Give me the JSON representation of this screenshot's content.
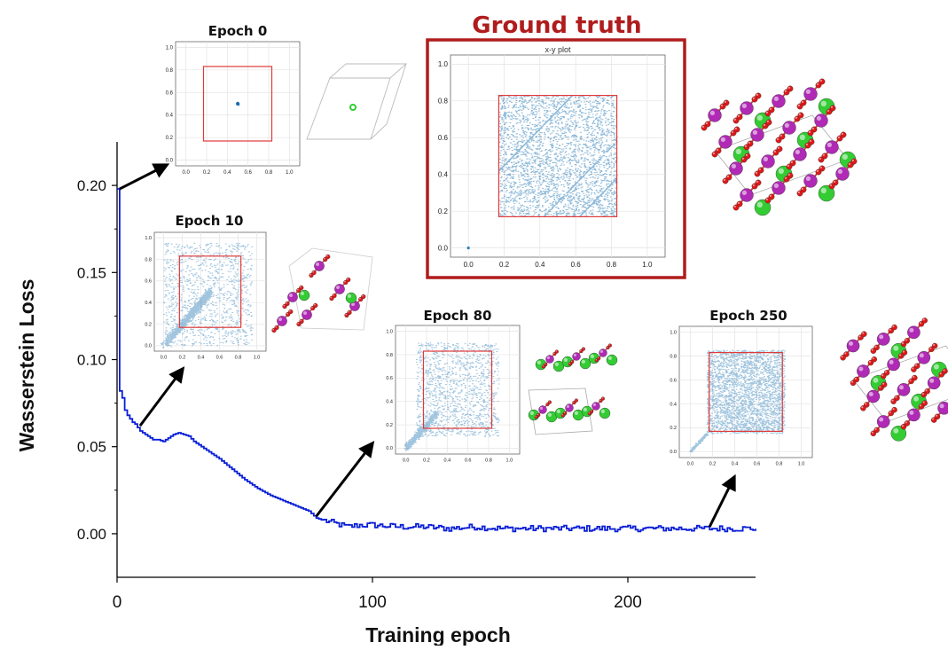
{
  "chart_data": {
    "type": "line",
    "xlabel": "Training epoch",
    "ylabel": "Wasserstein Loss",
    "xlim": [
      0,
      250
    ],
    "ylim": [
      -0.025,
      0.225
    ],
    "x_ticks": [
      0,
      100,
      200
    ],
    "x_tick_labels": [
      "0",
      "100",
      "200"
    ],
    "y_ticks": [
      0.0,
      0.05,
      0.1,
      0.15,
      0.2
    ],
    "y_tick_labels": [
      "0.00",
      "0.05",
      "0.10",
      "0.15",
      "0.20"
    ],
    "grid": false,
    "color": "#0a1fd6",
    "series": [
      {
        "x": [
          0,
          1,
          2,
          3,
          4,
          5,
          6,
          7,
          8,
          9,
          10,
          12,
          14,
          16,
          18,
          20,
          22,
          24,
          26,
          28,
          30,
          35,
          40,
          45,
          50,
          55,
          60,
          65,
          70,
          75,
          78,
          80,
          85,
          90,
          95,
          100,
          110,
          120,
          130,
          140,
          150,
          160,
          170,
          180,
          190,
          200,
          210,
          220,
          230,
          240,
          250
        ],
        "y": [
          0.198,
          0.082,
          0.078,
          0.071,
          0.068,
          0.066,
          0.064,
          0.063,
          0.061,
          0.059,
          0.058,
          0.056,
          0.054,
          0.054,
          0.053,
          0.055,
          0.057,
          0.058,
          0.057,
          0.056,
          0.053,
          0.048,
          0.043,
          0.037,
          0.031,
          0.026,
          0.022,
          0.019,
          0.016,
          0.013,
          0.009,
          0.008,
          0.006,
          0.004,
          0.005,
          0.005,
          0.004,
          0.004,
          0.003,
          0.004,
          0.003,
          0.003,
          0.003,
          0.003,
          0.003,
          0.003,
          0.003,
          0.003,
          0.003,
          0.003,
          0.003
        ]
      }
    ],
    "insets": [
      {
        "label": "Epoch 0",
        "epoch": 0,
        "tick_labels": [
          "0.0",
          "0.2",
          "0.4",
          "0.6",
          "0.8",
          "1.0"
        ]
      },
      {
        "label": "Epoch 10",
        "epoch": 10,
        "tick_labels": [
          "0.0",
          "0.2",
          "0.4",
          "0.6",
          "0.8",
          "1.0"
        ]
      },
      {
        "label": "Epoch 80",
        "epoch": 80,
        "tick_labels": [
          "0.0",
          "0.2",
          "0.4",
          "0.6",
          "0.8",
          "1.0"
        ]
      },
      {
        "label": "Epoch 250",
        "epoch": 250,
        "tick_labels": [
          "0.0",
          "0.2",
          "0.4",
          "0.6",
          "0.8",
          "1.0"
        ]
      },
      {
        "label": "Ground truth",
        "plot_title": "x-y plot",
        "tick_labels": [
          "0.0",
          "0.2",
          "0.4",
          "0.6",
          "0.8",
          "1.0"
        ],
        "highlight_color": "#b01c1c"
      }
    ],
    "structure_colors": {
      "cation": "#b02ab5",
      "anion_large": "#33cc33",
      "anion_small": "#e01818"
    }
  }
}
